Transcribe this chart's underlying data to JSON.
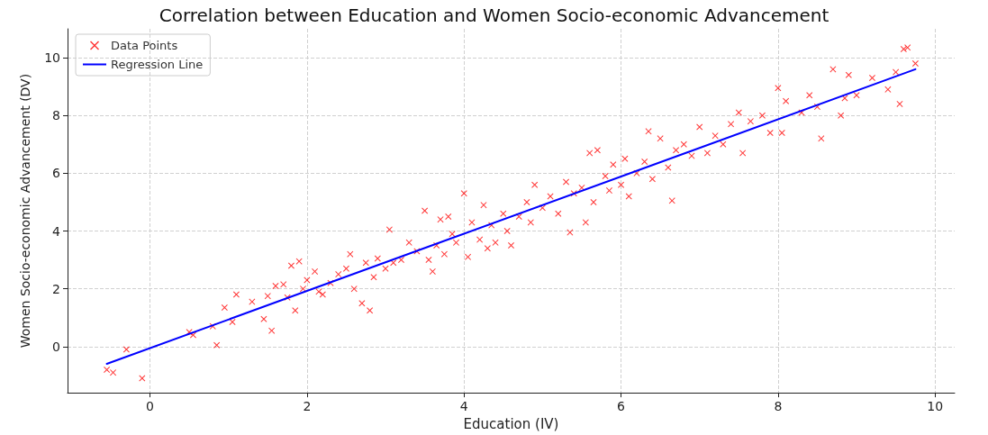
{
  "chart_data": {
    "type": "scatter",
    "title": "Correlation between Education and Women Socio-economic Advancement",
    "xlabel": "Education (IV)",
    "ylabel": "Women Socio-economic Advancement (DV)",
    "xlim": [
      -1.05,
      10.25
    ],
    "ylim": [
      -1.6,
      11
    ],
    "xticks": [
      0,
      2,
      4,
      6,
      8,
      10
    ],
    "yticks": [
      0,
      2,
      4,
      6,
      8,
      10
    ],
    "grid": true,
    "legend": "top left",
    "series": [
      {
        "name": "Data Points",
        "color": "#ff0000",
        "marker": "cross",
        "x": [
          -0.55,
          -0.47,
          -0.3,
          -0.1,
          0.5,
          0.55,
          0.8,
          0.85,
          0.95,
          1.05,
          1.1,
          1.3,
          1.45,
          1.5,
          1.55,
          1.6,
          1.7,
          1.75,
          1.8,
          1.85,
          1.9,
          1.95,
          2.0,
          2.1,
          2.15,
          2.2,
          2.3,
          2.4,
          2.5,
          2.55,
          2.6,
          2.7,
          2.75,
          2.8,
          2.85,
          2.9,
          3.0,
          3.05,
          3.1,
          3.2,
          3.3,
          3.4,
          3.5,
          3.55,
          3.6,
          3.65,
          3.7,
          3.75,
          3.8,
          3.85,
          3.9,
          4.0,
          4.05,
          4.1,
          4.2,
          4.25,
          4.3,
          4.35,
          4.4,
          4.5,
          4.55,
          4.6,
          4.7,
          4.8,
          4.85,
          4.9,
          5.0,
          5.1,
          5.2,
          5.3,
          5.35,
          5.4,
          5.5,
          5.55,
          5.6,
          5.65,
          5.7,
          5.8,
          5.85,
          5.9,
          6.0,
          6.05,
          6.1,
          6.2,
          6.3,
          6.35,
          6.4,
          6.5,
          6.6,
          6.65,
          6.7,
          6.8,
          6.9,
          7.0,
          7.1,
          7.2,
          7.3,
          7.4,
          7.5,
          7.55,
          7.65,
          7.8,
          7.9,
          8.0,
          8.05,
          8.1,
          8.3,
          8.4,
          8.5,
          8.55,
          8.7,
          8.8,
          8.85,
          8.9,
          9.0,
          9.2,
          9.4,
          9.5,
          9.55,
          9.6,
          9.65,
          9.75
        ],
        "values": [
          -0.8,
          -0.9,
          -0.1,
          -1.1,
          0.5,
          0.4,
          0.7,
          0.05,
          1.35,
          0.85,
          1.8,
          1.55,
          0.95,
          1.75,
          0.55,
          2.1,
          2.15,
          1.7,
          2.8,
          1.25,
          2.95,
          2.0,
          2.3,
          2.6,
          1.9,
          1.8,
          2.2,
          2.5,
          2.7,
          3.2,
          2.0,
          1.5,
          2.9,
          1.25,
          2.4,
          3.05,
          2.7,
          4.05,
          2.9,
          3.0,
          3.6,
          3.3,
          4.7,
          3.0,
          2.6,
          3.5,
          4.4,
          3.2,
          4.5,
          3.9,
          3.6,
          5.3,
          3.1,
          4.3,
          3.7,
          4.9,
          3.4,
          4.2,
          3.6,
          4.6,
          4.0,
          3.5,
          4.5,
          5.0,
          4.3,
          5.6,
          4.8,
          5.2,
          4.6,
          5.7,
          3.95,
          5.3,
          5.5,
          4.3,
          6.7,
          5.0,
          6.8,
          5.9,
          5.4,
          6.3,
          5.6,
          6.5,
          5.2,
          6.0,
          6.4,
          7.45,
          5.8,
          7.2,
          6.2,
          5.05,
          6.8,
          7.0,
          6.6,
          7.6,
          6.7,
          7.3,
          7.0,
          7.7,
          8.1,
          6.7,
          7.8,
          8.0,
          7.4,
          8.95,
          7.4,
          8.5,
          8.1,
          8.7,
          8.3,
          7.2,
          9.6,
          8.0,
          8.6,
          9.4,
          8.7,
          9.3,
          8.9,
          9.5,
          8.4,
          10.3,
          10.35,
          9.8
        ]
      },
      {
        "name": "Regression Line",
        "type": "line",
        "color": "#0000ff",
        "marker": "none",
        "line_style": "solid",
        "x": [
          -0.55,
          9.75
        ],
        "values": [
          -0.6,
          9.6
        ]
      }
    ]
  }
}
